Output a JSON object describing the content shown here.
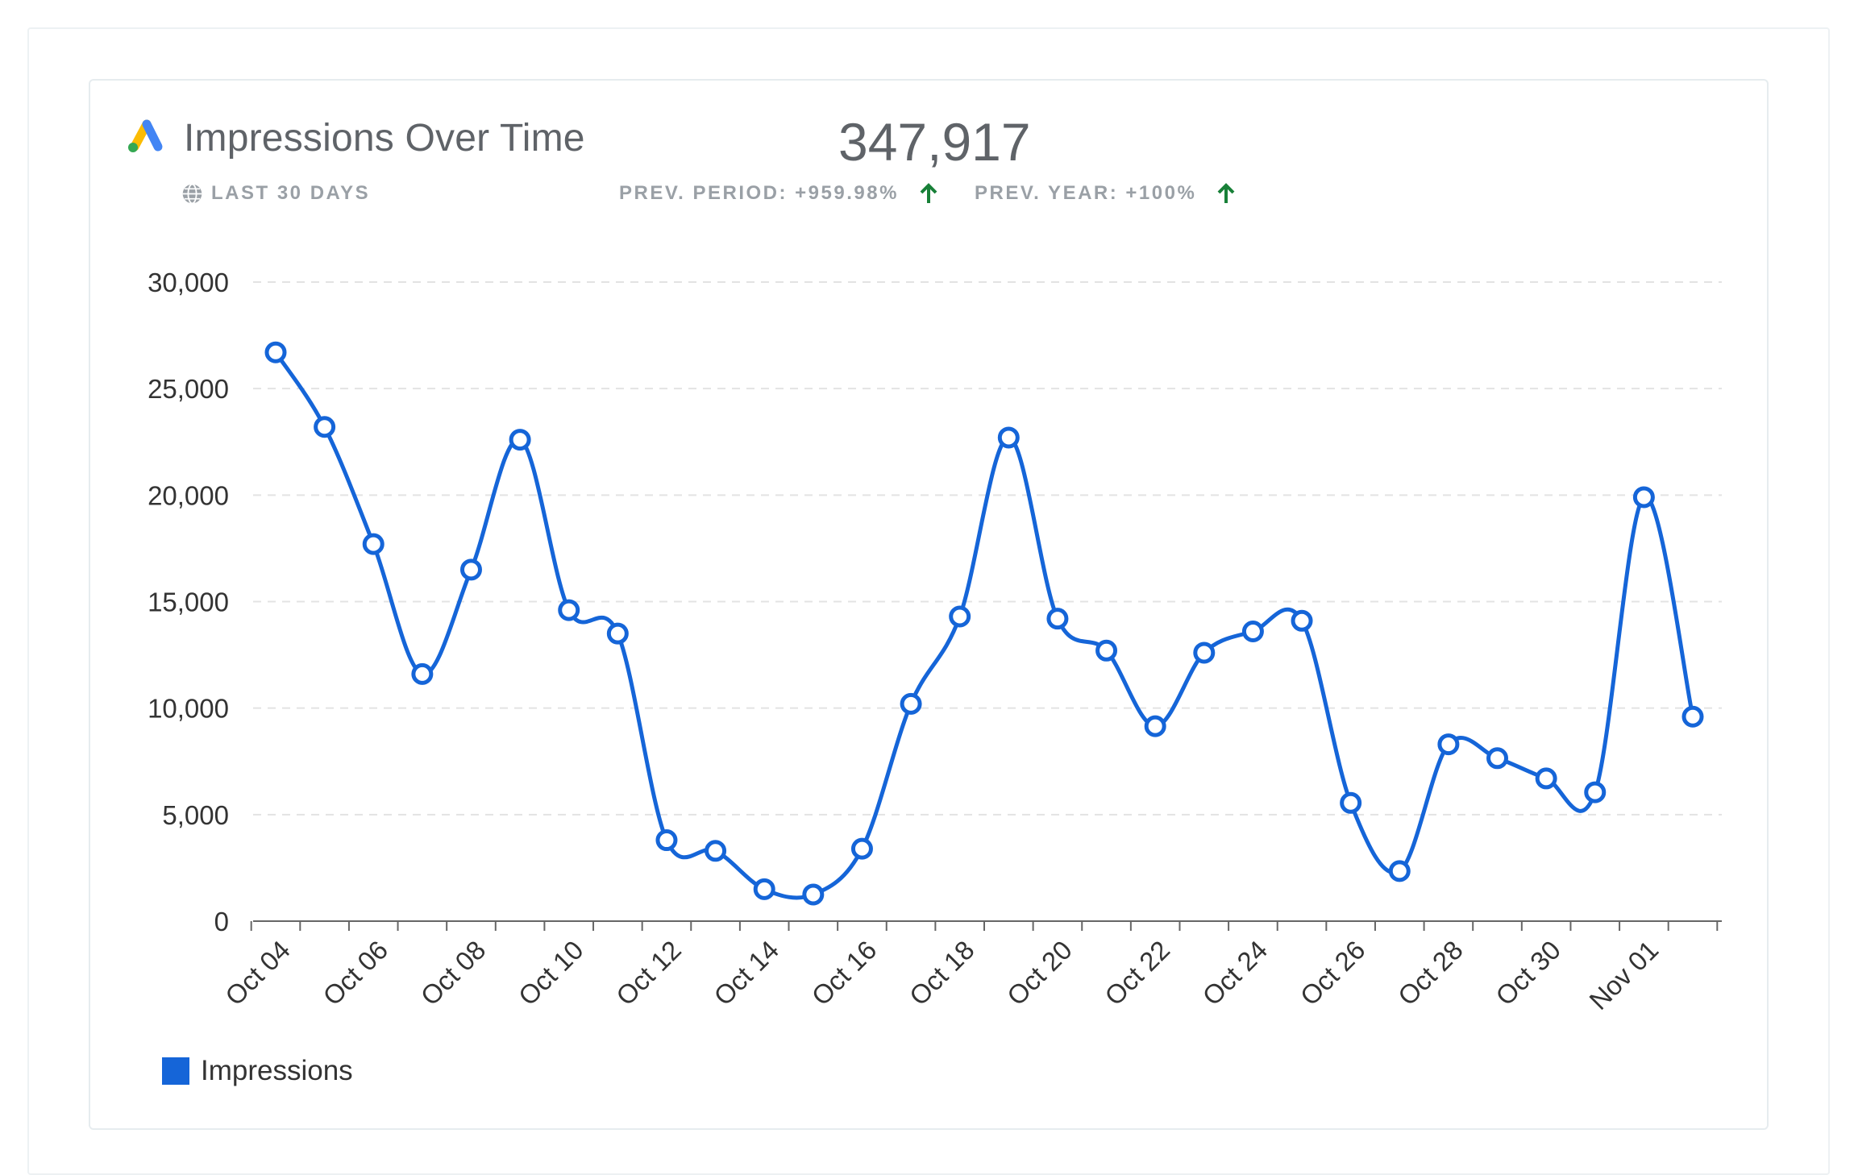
{
  "header": {
    "title": "Impressions Over Time",
    "date_range": "LAST 30 DAYS",
    "total": "347,917",
    "prev_period": "PREV. PERIOD: +959.98%",
    "prev_year": "PREV. YEAR: +100%"
  },
  "colors": {
    "line": "#1565d8",
    "positive": "#188038",
    "logo_blue": "#4285f4",
    "logo_yellow": "#fbbc04",
    "logo_green": "#34a853"
  },
  "legend": {
    "label": "Impressions"
  },
  "chart_data": {
    "type": "line",
    "title": "Impressions Over Time",
    "xlabel": "",
    "ylabel": "",
    "ylim": [
      0,
      30000
    ],
    "yticks": [
      "0",
      "5,000",
      "10,000",
      "15,000",
      "20,000",
      "25,000",
      "30,000"
    ],
    "xticks": [
      "Oct 04",
      "Oct 06",
      "Oct 08",
      "Oct 10",
      "Oct 12",
      "Oct 14",
      "Oct 16",
      "Oct 18",
      "Oct 20",
      "Oct 22",
      "Oct 24",
      "Oct 26",
      "Oct 28",
      "Oct 30",
      "Nov 01"
    ],
    "grid": true,
    "legend": "bottom-left",
    "x": [
      "Oct 04",
      "Oct 05",
      "Oct 06",
      "Oct 07",
      "Oct 08",
      "Oct 09",
      "Oct 10",
      "Oct 11",
      "Oct 12",
      "Oct 13",
      "Oct 14",
      "Oct 15",
      "Oct 16",
      "Oct 17",
      "Oct 18",
      "Oct 19",
      "Oct 20",
      "Oct 21",
      "Oct 22",
      "Oct 23",
      "Oct 24",
      "Oct 25",
      "Oct 26",
      "Oct 27",
      "Oct 28",
      "Oct 29",
      "Oct 30",
      "Oct 31",
      "Nov 01",
      "Nov 02"
    ],
    "series": [
      {
        "name": "Impressions",
        "values": [
          26700,
          23200,
          17700,
          11600,
          16500,
          22600,
          14600,
          13500,
          3800,
          3300,
          1500,
          1250,
          3400,
          10200,
          14300,
          22700,
          14200,
          12700,
          9150,
          12600,
          13600,
          14100,
          5550,
          2350,
          8300,
          7650,
          6700,
          6050,
          19900,
          9600
        ]
      }
    ]
  }
}
